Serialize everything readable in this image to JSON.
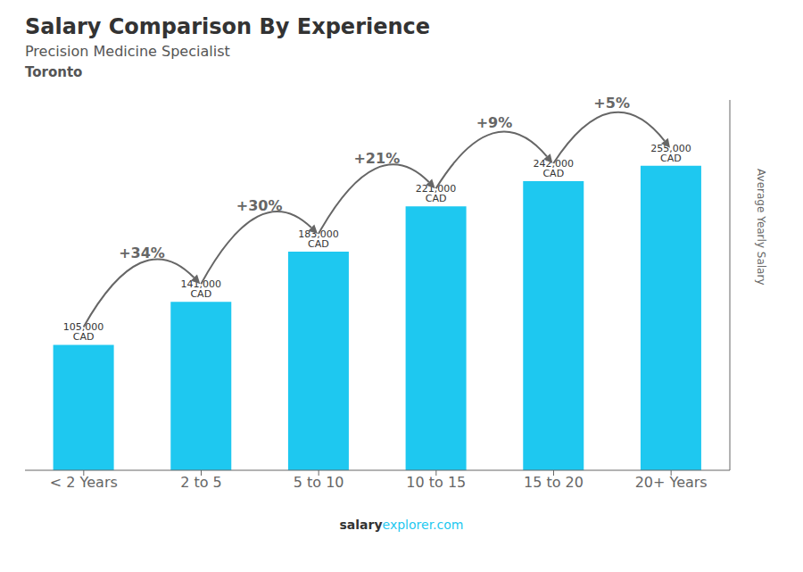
{
  "chart_data": {
    "type": "bar",
    "title": "Salary Comparison By Experience",
    "subtitle": "Precision Medicine Specialist",
    "annotations": [
      "Toronto",
      "salary",
      "explorer.com"
    ],
    "ylabel": "Average Yearly Salary",
    "categories": [
      "< 2 Years",
      "2 to 5",
      "5 to 10",
      "10 to 15",
      "15 to 20",
      "20+ Years"
    ],
    "values": [
      105000,
      141000,
      183000,
      221000,
      242000,
      255000
    ],
    "value_labels": [
      "105,000 CAD",
      "141,000 CAD",
      "183,000 CAD",
      "221,000 CAD",
      "242,000 CAD",
      "255,000 CAD"
    ],
    "data_labels": true,
    "change_labels": [
      "+34%",
      "+30%",
      "+21%",
      "+9%",
      "+5%"
    ],
    "color": "#1ec8f0",
    "ylim": [
      0,
      310000
    ],
    "tick_labels": "x",
    "grid": false
  }
}
